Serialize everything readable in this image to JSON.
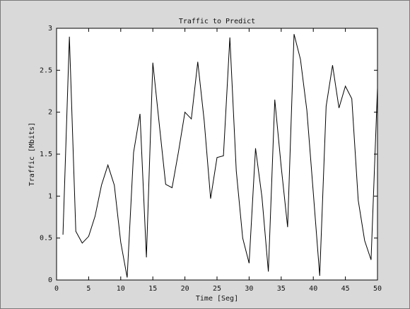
{
  "chart_data": {
    "type": "line",
    "title": "Traffic to Predict",
    "xlabel": "Time [Seg]",
    "ylabel": "Traffic [Mbits]",
    "xlim": [
      0,
      50
    ],
    "ylim": [
      0,
      3
    ],
    "x_ticks": [
      "0",
      "5",
      "10",
      "15",
      "20",
      "25",
      "30",
      "35",
      "40",
      "45",
      "50"
    ],
    "y_ticks": [
      "0",
      "0.5",
      "1",
      "1.5",
      "2",
      "2.5",
      "3"
    ],
    "grid": false,
    "legend": "none",
    "series": [
      {
        "x": [
          1,
          2,
          3,
          4,
          5,
          6,
          7,
          8,
          9,
          10,
          11,
          12,
          13,
          14,
          15,
          16,
          17,
          18,
          19,
          20,
          21,
          22,
          23,
          24,
          25,
          26,
          27,
          28,
          29,
          30,
          31,
          32,
          33,
          34,
          35,
          36,
          37,
          38,
          39,
          40,
          41,
          42,
          43,
          44,
          45,
          46,
          47,
          48,
          49,
          50
        ],
        "y": [
          0.54,
          2.9,
          0.58,
          0.44,
          0.52,
          0.76,
          1.13,
          1.37,
          1.13,
          0.45,
          0.03,
          1.52,
          1.98,
          0.27,
          2.59,
          1.86,
          1.14,
          1.1,
          1.53,
          2.0,
          1.92,
          2.6,
          1.9,
          0.97,
          1.46,
          1.48,
          2.89,
          1.3,
          0.5,
          0.2,
          1.57,
          0.99,
          0.1,
          2.15,
          1.35,
          0.63,
          2.93,
          2.63,
          2.02,
          1.04,
          0.05,
          2.07,
          2.56,
          2.05,
          2.31,
          2.16,
          0.95,
          0.47,
          0.24,
          2.29
        ]
      }
    ],
    "colors": {
      "line": "#000000",
      "axes": "#000000",
      "plot_background": "#ffffff",
      "figure_background": "#d9d9d9"
    }
  }
}
